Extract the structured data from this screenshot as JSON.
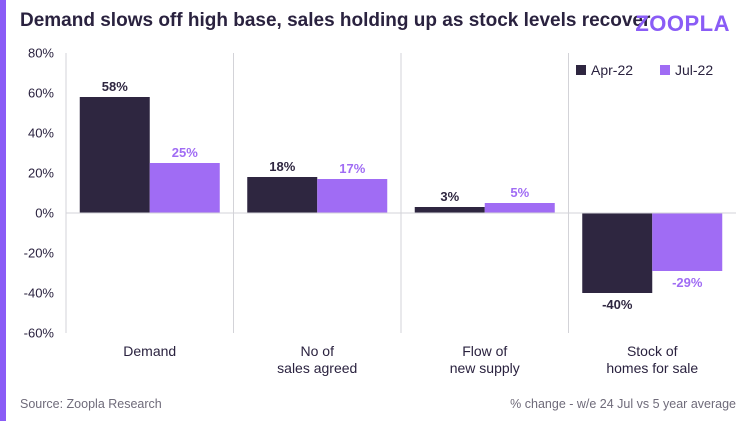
{
  "header": {
    "title": "Demand slows off high base, sales holding up as stock levels recover",
    "logo": "ZOOPLA"
  },
  "footer": {
    "source": "Source: Zoopla Research",
    "note": "% change - w/e 24 Jul vs 5 year average"
  },
  "colors": {
    "apr": "#2e2640",
    "jul": "#a06cf4",
    "accent": "#8a5cf6",
    "grid": "#d3d3d8"
  },
  "chart_data": {
    "type": "bar",
    "categories": [
      [
        "Demand"
      ],
      [
        "No of",
        "sales agreed"
      ],
      [
        "Flow of",
        "new supply"
      ],
      [
        "Stock of",
        "homes for sale"
      ]
    ],
    "series": [
      {
        "name": "Apr-22",
        "values": [
          58,
          18,
          3,
          -40
        ],
        "labels": [
          "58%",
          "18%",
          "3%",
          "-40%"
        ],
        "color": "#2e2640"
      },
      {
        "name": "Jul-22",
        "values": [
          25,
          17,
          5,
          -29
        ],
        "labels": [
          "25%",
          "17%",
          "5%",
          "-29%"
        ],
        "color": "#a06cf4"
      }
    ],
    "yticks": [
      "80%",
      "60%",
      "40%",
      "20%",
      "0%",
      "-20%",
      "-40%",
      "-60%"
    ],
    "ytick_values": [
      80,
      60,
      40,
      20,
      0,
      -20,
      -40,
      -60
    ],
    "ylim": [
      -60,
      80
    ],
    "legend": "top-right",
    "grid": "vertical separators"
  }
}
